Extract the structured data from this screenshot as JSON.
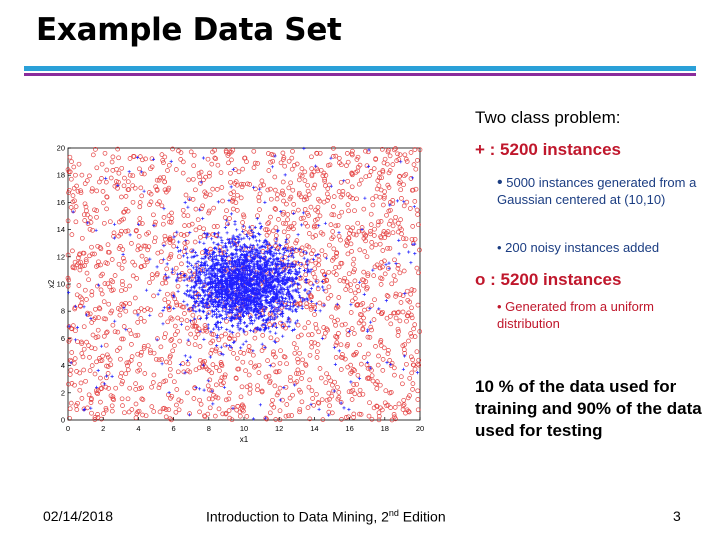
{
  "slide": {
    "title": "Example Data Set",
    "colors": {
      "rule_top": "#2aa0d8",
      "rule_bottom": "#8a2c9c",
      "class_plus": "#2020ff",
      "class_o": "#e02020",
      "highlight": "#c0172c",
      "sub_text": "#1b3d82"
    }
  },
  "content": {
    "heading": "Two class problem:",
    "plus_class": {
      "label": "+ : 5200 instances",
      "bullet_1_marker": "•",
      "bullet_1": "5000 instances generated from a Gaussian centered at (10,10)",
      "bullet_2": "• 200 noisy instances added"
    },
    "o_class": {
      "label": "o : 5200 instances",
      "bullet": "• Generated from a uniform distribution"
    },
    "split": "10 % of the data used for training and 90% of the data used for testing"
  },
  "footer": {
    "date": "02/14/2018",
    "course_prefix": "Introduction to Data Mining, 2",
    "course_sup": "nd",
    "course_suffix": " Edition",
    "page": "3"
  },
  "chart_data": {
    "type": "scatter",
    "title": "",
    "xlabel": "x1",
    "ylabel": "x2",
    "xlim": [
      0,
      20
    ],
    "ylim": [
      0,
      20
    ],
    "xticks": [
      "0",
      "2",
      "4",
      "6",
      "8",
      "10",
      "12",
      "14",
      "16",
      "18",
      "20"
    ],
    "yticks": [
      "0",
      "2",
      "4",
      "6",
      "8",
      "10",
      "12",
      "14",
      "16",
      "18",
      "20"
    ],
    "grid": false,
    "series": [
      {
        "marker": "o",
        "distribution": "uniform",
        "range": [
          [
            0,
            20
          ],
          [
            0,
            20
          ]
        ],
        "count": 5200
      },
      {
        "marker": "+",
        "distribution": "gaussian",
        "center": [
          10,
          10
        ],
        "count": 5000
      },
      {
        "marker": "+",
        "distribution": "uniform noise",
        "range": [
          [
            0,
            20
          ],
          [
            0,
            20
          ]
        ],
        "count": 200
      }
    ]
  }
}
